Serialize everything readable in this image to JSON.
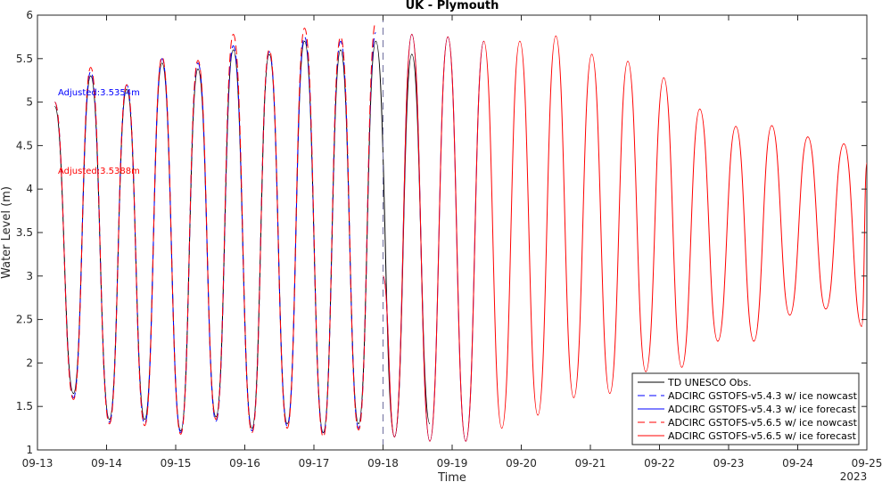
{
  "chart_data": {
    "type": "line",
    "title": "UK - Plymouth",
    "xlabel": "Time",
    "ylabel": "Water Level (m)",
    "xlim": [
      "2023-09-13 00:00",
      "2023-09-25 00:00"
    ],
    "ylim": [
      1,
      6
    ],
    "x_ticks": [
      "09-13",
      "09-14",
      "09-15",
      "09-16",
      "09-17",
      "09-18",
      "09-19",
      "09-20",
      "09-21",
      "09-22",
      "09-23",
      "09-24",
      "09-25"
    ],
    "y_ticks": [
      "1",
      "1.5",
      "2",
      "2.5",
      "3",
      "3.5",
      "4",
      "4.5",
      "5",
      "5.5",
      "6"
    ],
    "year_label": "2023",
    "nowcast_forecast_divider": "2023-09-18 00:00",
    "grid": false,
    "legend_position": "bottom-right",
    "annotations": [
      {
        "text": "Adjusted:3.5354m",
        "color": "#0000ff"
      },
      {
        "text": "Adjusted:3.5388m",
        "color": "#ff0000"
      }
    ],
    "series": [
      {
        "name": "TD UNESCO Obs.",
        "color": "#000000",
        "style": "solid",
        "x": [
          "09-13 06:00",
          "09-13 12:30",
          "09-13 18:30",
          "09-14 01:00",
          "09-14 07:00",
          "09-14 13:15",
          "09-14 19:15",
          "09-15 01:45",
          "09-15 07:45",
          "09-15 14:00",
          "09-15 20:00",
          "09-16 02:30",
          "09-16 08:30",
          "09-16 14:45",
          "09-16 20:45",
          "09-17 03:15",
          "09-17 09:15",
          "09-17 15:30",
          "09-17 21:30",
          "09-18 04:00",
          "09-18 10:00",
          "09-18 16:15"
        ],
        "y": [
          4.95,
          1.65,
          5.3,
          1.35,
          5.15,
          1.35,
          5.45,
          1.22,
          5.38,
          1.38,
          5.6,
          1.25,
          5.55,
          1.3,
          5.7,
          1.2,
          5.6,
          1.3,
          5.7,
          1.15,
          5.55,
          1.3
        ]
      },
      {
        "name": "ADCIRC GSTOFS-v5.4.3 w/ ice nowcast",
        "color": "#0000ff",
        "style": "dashed",
        "x": [
          "09-13 06:00",
          "09-13 12:30",
          "09-13 18:30",
          "09-14 01:00",
          "09-14 07:00",
          "09-14 13:15",
          "09-14 19:15",
          "09-15 01:45",
          "09-15 07:45",
          "09-15 14:00",
          "09-15 20:00",
          "09-16 02:30",
          "09-16 08:30",
          "09-16 14:45",
          "09-16 20:45",
          "09-17 03:15",
          "09-17 09:15",
          "09-17 15:30",
          "09-17 21:30"
        ],
        "y": [
          5.0,
          1.6,
          5.35,
          1.32,
          5.2,
          1.3,
          5.5,
          1.2,
          5.45,
          1.33,
          5.65,
          1.22,
          5.58,
          1.27,
          5.75,
          1.17,
          5.7,
          1.25,
          5.8
        ]
      },
      {
        "name": "ADCIRC GSTOFS-v5.4.3 w/ ice forecast",
        "color": "#0000ff",
        "style": "solid",
        "x": [
          "09-18 00:00",
          "09-18 04:00",
          "09-18 10:00",
          "09-18 16:15",
          "09-18 22:30",
          "09-19 04:45",
          "09-19 11:00"
        ],
        "y": [
          3.0,
          1.15,
          5.78,
          1.1,
          5.75,
          1.1,
          5.7
        ]
      },
      {
        "name": "ADCIRC GSTOFS-v5.6.5 w/ ice nowcast",
        "color": "#ff0000",
        "style": "dashed",
        "x": [
          "09-13 06:00",
          "09-13 12:30",
          "09-13 18:30",
          "09-14 01:00",
          "09-14 07:00",
          "09-14 13:15",
          "09-14 19:15",
          "09-15 01:45",
          "09-15 07:45",
          "09-15 14:00",
          "09-15 20:00",
          "09-16 02:30",
          "09-16 08:30",
          "09-16 14:45",
          "09-16 20:45",
          "09-17 03:15",
          "09-17 09:15",
          "09-17 15:30",
          "09-17 21:30"
        ],
        "y": [
          5.0,
          1.58,
          5.4,
          1.3,
          5.2,
          1.28,
          5.52,
          1.18,
          5.48,
          1.35,
          5.78,
          1.2,
          5.6,
          1.25,
          5.85,
          1.15,
          5.75,
          1.23,
          5.92
        ]
      },
      {
        "name": "ADCIRC GSTOFS-v5.6.5 w/ ice forecast",
        "color": "#ff0000",
        "style": "solid",
        "x": [
          "09-18 00:00",
          "09-18 04:00",
          "09-18 10:00",
          "09-18 16:15",
          "09-18 22:30",
          "09-19 04:45",
          "09-19 11:00",
          "09-19 17:15",
          "09-19 23:30",
          "09-20 05:45",
          "09-20 12:00",
          "09-20 18:15",
          "09-21 00:30",
          "09-21 06:45",
          "09-21 13:00",
          "09-21 19:15",
          "09-22 01:30",
          "09-22 07:45",
          "09-22 14:00",
          "09-22 20:15",
          "09-23 02:30",
          "09-23 08:45",
          "09-23 15:00",
          "09-23 21:15",
          "09-24 03:30",
          "09-24 09:45",
          "09-24 16:00",
          "09-24 22:15",
          "09-25 00:00"
        ],
        "y": [
          3.0,
          1.15,
          5.78,
          1.1,
          5.75,
          1.1,
          5.7,
          1.25,
          5.7,
          1.4,
          5.76,
          1.6,
          5.55,
          1.65,
          5.47,
          1.9,
          5.28,
          1.95,
          4.92,
          2.25,
          4.72,
          2.25,
          4.73,
          2.55,
          4.6,
          2.62,
          4.52,
          2.42,
          4.3
        ]
      }
    ]
  }
}
